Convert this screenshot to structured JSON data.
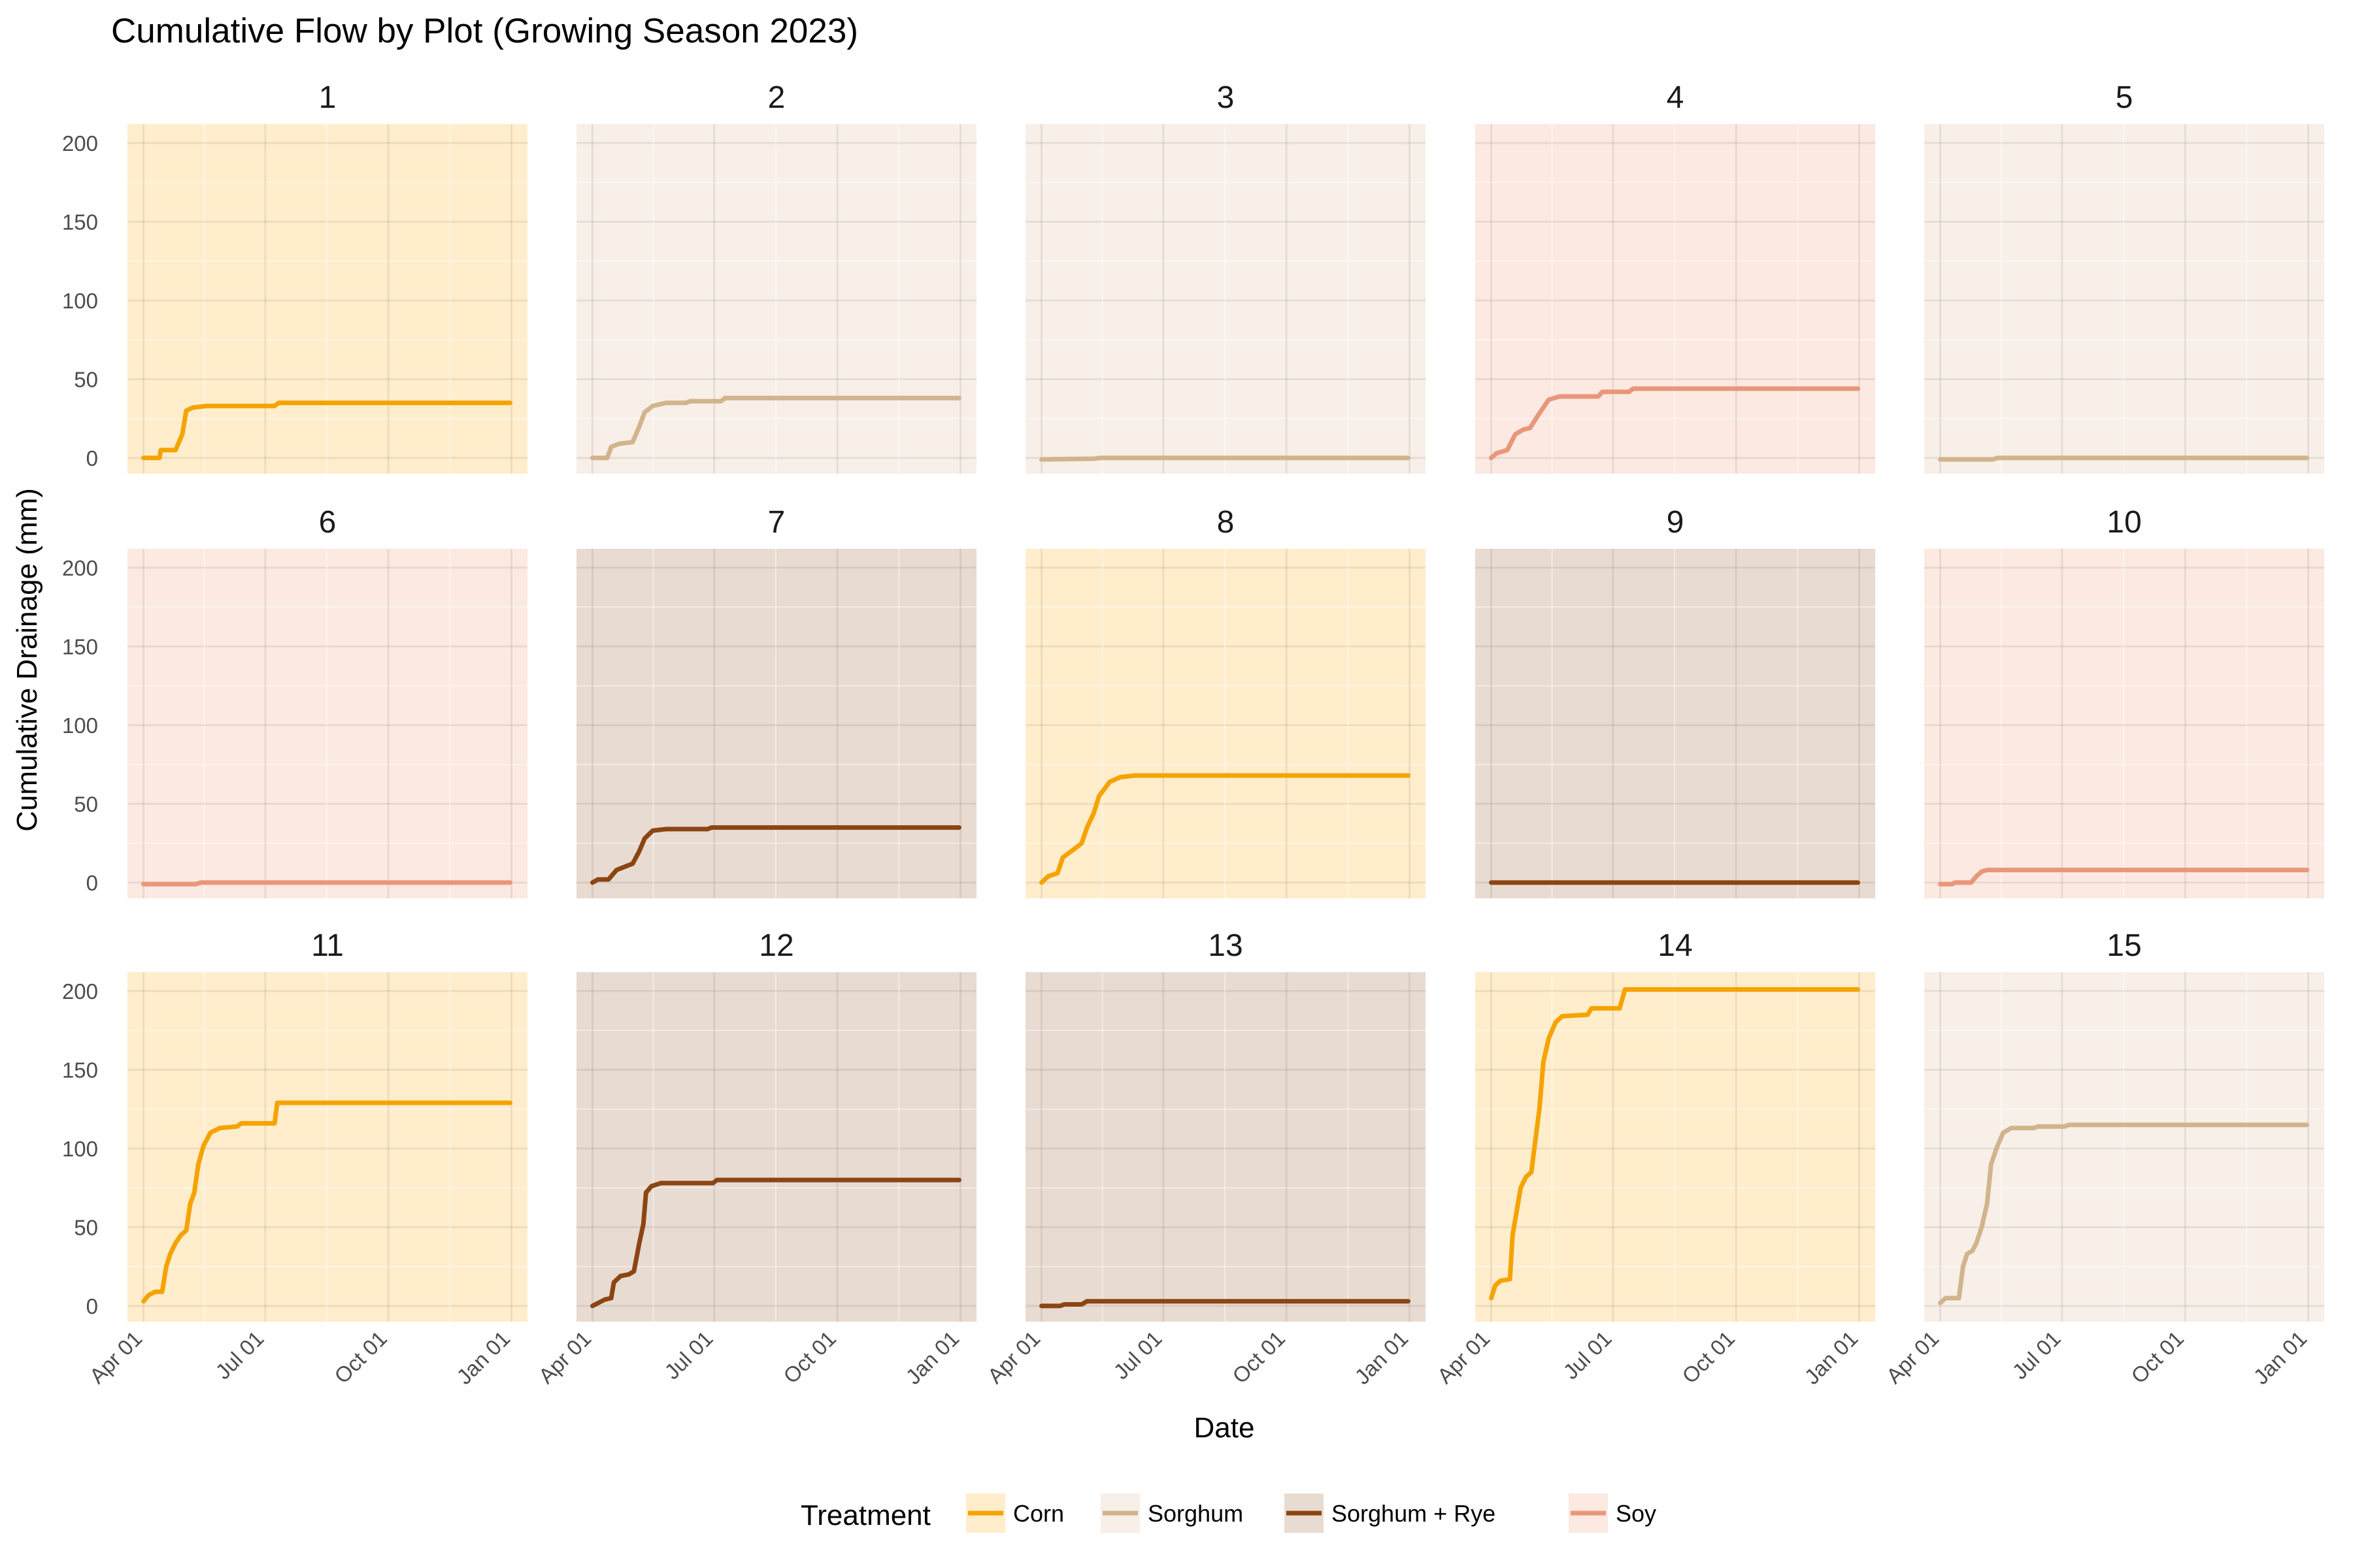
{
  "chart_data": {
    "type": "line",
    "title": "Cumulative Flow by Plot (Growing Season 2023)",
    "xlabel": "Date",
    "ylabel": "Cumulative Drainage (mm)",
    "x_range": [
      "2023-04-01",
      "2024-01-01"
    ],
    "x_ticks": [
      {
        "date": "2023-04-01",
        "label": "Apr 01"
      },
      {
        "date": "2023-07-01",
        "label": "Jul 01"
      },
      {
        "date": "2023-10-01",
        "label": "Oct 01"
      },
      {
        "date": "2024-01-01",
        "label": "Jan 01"
      }
    ],
    "ylim": [
      -10,
      212
    ],
    "y_ticks": [
      0,
      50,
      100,
      150,
      200
    ],
    "grid": true,
    "legend": {
      "title": "Treatment",
      "position": "bottom"
    },
    "treatments": [
      {
        "name": "Corn",
        "line_color": "#f5a300",
        "fill_color": "#ffedcc"
      },
      {
        "name": "Sorghum",
        "line_color": "#d2b48c",
        "fill_color": "#f7efe8"
      },
      {
        "name": "Sorghum + Rye",
        "line_color": "#8b4513",
        "fill_color": "#e8dbd1"
      },
      {
        "name": "Soy",
        "line_color": "#e9967a",
        "fill_color": "#fbe9e2"
      }
    ],
    "panels": [
      {
        "plot": "1",
        "treatment": "Corn",
        "points": [
          [
            "2023-04-01",
            0
          ],
          [
            "2023-04-13",
            0
          ],
          [
            "2023-04-14",
            5
          ],
          [
            "2023-04-25",
            5
          ],
          [
            "2023-04-30",
            15
          ],
          [
            "2023-05-03",
            30
          ],
          [
            "2023-05-08",
            32
          ],
          [
            "2023-05-18",
            33
          ],
          [
            "2023-07-08",
            33
          ],
          [
            "2023-07-11",
            35
          ],
          [
            "2023-12-31",
            35
          ]
        ]
      },
      {
        "plot": "2",
        "treatment": "Sorghum",
        "points": [
          [
            "2023-04-01",
            0
          ],
          [
            "2023-04-12",
            0
          ],
          [
            "2023-04-15",
            7
          ],
          [
            "2023-04-21",
            9
          ],
          [
            "2023-05-01",
            10
          ],
          [
            "2023-05-06",
            20
          ],
          [
            "2023-05-10",
            29
          ],
          [
            "2023-05-16",
            33
          ],
          [
            "2023-05-26",
            35
          ],
          [
            "2023-06-10",
            35
          ],
          [
            "2023-06-13",
            36
          ],
          [
            "2023-07-06",
            36
          ],
          [
            "2023-07-09",
            38
          ],
          [
            "2023-12-31",
            38
          ]
        ]
      },
      {
        "plot": "3",
        "treatment": "Sorghum",
        "points": [
          [
            "2023-04-01",
            -1
          ],
          [
            "2023-05-10",
            -0.5
          ],
          [
            "2023-05-15",
            0
          ],
          [
            "2023-12-31",
            0
          ]
        ]
      },
      {
        "plot": "4",
        "treatment": "Soy",
        "points": [
          [
            "2023-04-01",
            0
          ],
          [
            "2023-04-05",
            3
          ],
          [
            "2023-04-13",
            5
          ],
          [
            "2023-04-19",
            15
          ],
          [
            "2023-04-25",
            18
          ],
          [
            "2023-04-30",
            19
          ],
          [
            "2023-05-06",
            27
          ],
          [
            "2023-05-14",
            37
          ],
          [
            "2023-05-22",
            39
          ],
          [
            "2023-06-20",
            39
          ],
          [
            "2023-06-23",
            42
          ],
          [
            "2023-07-13",
            42
          ],
          [
            "2023-07-16",
            44
          ],
          [
            "2023-12-31",
            44
          ]
        ]
      },
      {
        "plot": "5",
        "treatment": "Sorghum",
        "points": [
          [
            "2023-04-01",
            -1
          ],
          [
            "2023-05-10",
            -1
          ],
          [
            "2023-05-14",
            0
          ],
          [
            "2023-12-31",
            0
          ]
        ]
      },
      {
        "plot": "6",
        "treatment": "Soy",
        "points": [
          [
            "2023-04-01",
            -1
          ],
          [
            "2023-05-10",
            -1
          ],
          [
            "2023-05-14",
            0
          ],
          [
            "2023-12-31",
            0
          ]
        ]
      },
      {
        "plot": "7",
        "treatment": "Sorghum + Rye",
        "points": [
          [
            "2023-04-01",
            0
          ],
          [
            "2023-04-05",
            2
          ],
          [
            "2023-04-13",
            2
          ],
          [
            "2023-04-19",
            8
          ],
          [
            "2023-04-25",
            10
          ],
          [
            "2023-05-01",
            12
          ],
          [
            "2023-05-06",
            20
          ],
          [
            "2023-05-10",
            28
          ],
          [
            "2023-05-16",
            33
          ],
          [
            "2023-05-26",
            34
          ],
          [
            "2023-06-26",
            34
          ],
          [
            "2023-06-29",
            35
          ],
          [
            "2023-12-31",
            35
          ]
        ]
      },
      {
        "plot": "8",
        "treatment": "Corn",
        "points": [
          [
            "2023-04-01",
            0
          ],
          [
            "2023-04-06",
            4
          ],
          [
            "2023-04-13",
            6
          ],
          [
            "2023-04-17",
            16
          ],
          [
            "2023-04-25",
            21
          ],
          [
            "2023-05-01",
            25
          ],
          [
            "2023-05-05",
            35
          ],
          [
            "2023-05-10",
            44
          ],
          [
            "2023-05-14",
            55
          ],
          [
            "2023-05-22",
            64
          ],
          [
            "2023-05-30",
            67
          ],
          [
            "2023-06-10",
            68
          ],
          [
            "2023-12-31",
            68
          ]
        ]
      },
      {
        "plot": "9",
        "treatment": "Sorghum + Rye",
        "points": [
          [
            "2023-04-01",
            0
          ],
          [
            "2023-12-31",
            0
          ]
        ]
      },
      {
        "plot": "10",
        "treatment": "Soy",
        "points": [
          [
            "2023-04-01",
            -1
          ],
          [
            "2023-04-10",
            -1
          ],
          [
            "2023-04-12",
            0
          ],
          [
            "2023-04-24",
            0
          ],
          [
            "2023-04-28",
            4
          ],
          [
            "2023-05-02",
            7
          ],
          [
            "2023-05-06",
            8
          ],
          [
            "2023-12-31",
            8
          ]
        ]
      },
      {
        "plot": "11",
        "treatment": "Corn",
        "points": [
          [
            "2023-04-01",
            3
          ],
          [
            "2023-04-05",
            7
          ],
          [
            "2023-04-10",
            9
          ],
          [
            "2023-04-15",
            9
          ],
          [
            "2023-04-18",
            25
          ],
          [
            "2023-04-21",
            33
          ],
          [
            "2023-04-25",
            40
          ],
          [
            "2023-04-29",
            45
          ],
          [
            "2023-05-03",
            48
          ],
          [
            "2023-05-06",
            65
          ],
          [
            "2023-05-09",
            72
          ],
          [
            "2023-05-12",
            90
          ],
          [
            "2023-05-16",
            102
          ],
          [
            "2023-05-21",
            110
          ],
          [
            "2023-05-28",
            113
          ],
          [
            "2023-06-10",
            114
          ],
          [
            "2023-06-13",
            116
          ],
          [
            "2023-07-08",
            116
          ],
          [
            "2023-07-10",
            129
          ],
          [
            "2023-12-31",
            129
          ]
        ]
      },
      {
        "plot": "12",
        "treatment": "Sorghum + Rye",
        "points": [
          [
            "2023-04-01",
            0
          ],
          [
            "2023-04-10",
            4
          ],
          [
            "2023-04-15",
            5
          ],
          [
            "2023-04-17",
            15
          ],
          [
            "2023-04-22",
            19
          ],
          [
            "2023-04-28",
            20
          ],
          [
            "2023-05-02",
            22
          ],
          [
            "2023-05-06",
            40
          ],
          [
            "2023-05-09",
            52
          ],
          [
            "2023-05-11",
            72
          ],
          [
            "2023-05-15",
            76
          ],
          [
            "2023-05-22",
            78
          ],
          [
            "2023-06-30",
            78
          ],
          [
            "2023-07-03",
            80
          ],
          [
            "2023-12-31",
            80
          ]
        ]
      },
      {
        "plot": "13",
        "treatment": "Sorghum + Rye",
        "points": [
          [
            "2023-04-01",
            0
          ],
          [
            "2023-04-15",
            0
          ],
          [
            "2023-04-18",
            1
          ],
          [
            "2023-05-01",
            1
          ],
          [
            "2023-05-05",
            3
          ],
          [
            "2023-12-31",
            3
          ]
        ]
      },
      {
        "plot": "14",
        "treatment": "Corn",
        "points": [
          [
            "2023-04-01",
            5
          ],
          [
            "2023-04-04",
            13
          ],
          [
            "2023-04-08",
            16
          ],
          [
            "2023-04-15",
            17
          ],
          [
            "2023-04-17",
            45
          ],
          [
            "2023-04-20",
            60
          ],
          [
            "2023-04-23",
            75
          ],
          [
            "2023-04-27",
            82
          ],
          [
            "2023-05-01",
            85
          ],
          [
            "2023-05-04",
            105
          ],
          [
            "2023-05-07",
            125
          ],
          [
            "2023-05-10",
            155
          ],
          [
            "2023-05-14",
            170
          ],
          [
            "2023-05-19",
            180
          ],
          [
            "2023-05-24",
            184
          ],
          [
            "2023-06-12",
            185
          ],
          [
            "2023-06-15",
            189
          ],
          [
            "2023-07-06",
            189
          ],
          [
            "2023-07-10",
            201
          ],
          [
            "2023-12-31",
            201
          ]
        ]
      },
      {
        "plot": "15",
        "treatment": "Sorghum",
        "points": [
          [
            "2023-04-01",
            2
          ],
          [
            "2023-04-05",
            5
          ],
          [
            "2023-04-15",
            5
          ],
          [
            "2023-04-18",
            25
          ],
          [
            "2023-04-21",
            33
          ],
          [
            "2023-04-25",
            35
          ],
          [
            "2023-04-28",
            40
          ],
          [
            "2023-05-02",
            50
          ],
          [
            "2023-05-06",
            65
          ],
          [
            "2023-05-09",
            90
          ],
          [
            "2023-05-13",
            100
          ],
          [
            "2023-05-18",
            110
          ],
          [
            "2023-05-24",
            113
          ],
          [
            "2023-06-10",
            113
          ],
          [
            "2023-06-13",
            114
          ],
          [
            "2023-07-03",
            114
          ],
          [
            "2023-07-06",
            115
          ],
          [
            "2023-12-31",
            115
          ]
        ]
      }
    ]
  }
}
